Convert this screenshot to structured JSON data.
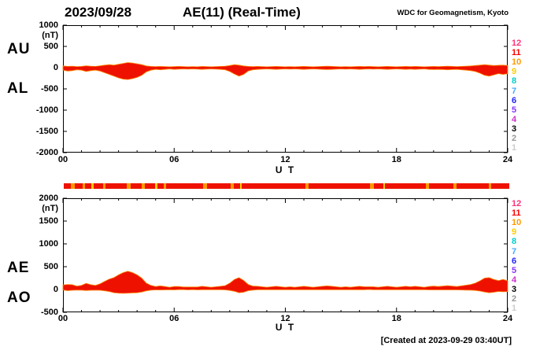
{
  "header": {
    "date": "2023/09/28",
    "title": "AE(11) (Real-Time)",
    "credit": "WDC for Geomagnetism, Kyoto"
  },
  "footer": {
    "created": "[Created at 2023-09-29 03:40UT]"
  },
  "station_legend": {
    "description": "number of stations color scale",
    "items": [
      {
        "label": "12",
        "color": "#ff3377"
      },
      {
        "label": "11",
        "color": "#ff0000"
      },
      {
        "label": "10",
        "color": "#ff9900"
      },
      {
        "label": "9",
        "color": "#ffcc00"
      },
      {
        "label": "8",
        "color": "#00cccc"
      },
      {
        "label": "7",
        "color": "#44aaff"
      },
      {
        "label": "6",
        "color": "#2222ff"
      },
      {
        "label": "5",
        "color": "#8833ff"
      },
      {
        "label": "4",
        "color": "#cc33cc"
      },
      {
        "label": "3",
        "color": "#000000"
      },
      {
        "label": "2",
        "color": "#999999"
      },
      {
        "label": "1",
        "color": "#cccccc"
      }
    ]
  },
  "colorbar": {
    "base_color": "#ee1100",
    "segments": [
      {
        "x": 0.4,
        "w": 0.2,
        "color": "#ff9900"
      },
      {
        "x": 1.0,
        "w": 0.15,
        "color": "#ff9900"
      },
      {
        "x": 1.5,
        "w": 0.1,
        "color": "#ffcc00"
      },
      {
        "x": 2.1,
        "w": 0.15,
        "color": "#ff9900"
      },
      {
        "x": 3.4,
        "w": 0.2,
        "color": "#ff9900"
      },
      {
        "x": 4.2,
        "w": 0.15,
        "color": "#ff9900"
      },
      {
        "x": 4.9,
        "w": 0.15,
        "color": "#ffcc00"
      },
      {
        "x": 5.4,
        "w": 0.1,
        "color": "#ff9900"
      },
      {
        "x": 7.5,
        "w": 0.2,
        "color": "#ff9900"
      },
      {
        "x": 9.0,
        "w": 0.15,
        "color": "#ff9900"
      },
      {
        "x": 9.5,
        "w": 0.1,
        "color": "#ffcc00"
      },
      {
        "x": 13.0,
        "w": 0.2,
        "color": "#ff9900"
      },
      {
        "x": 16.5,
        "w": 0.2,
        "color": "#ff9900"
      },
      {
        "x": 17.2,
        "w": 0.12,
        "color": "#ffcc00"
      },
      {
        "x": 19.5,
        "w": 0.18,
        "color": "#ff9900"
      },
      {
        "x": 21.0,
        "w": 0.15,
        "color": "#ff9900"
      },
      {
        "x": 22.9,
        "w": 0.12,
        "color": "#ff9900"
      }
    ]
  },
  "chart_data": [
    {
      "type": "area",
      "title": "AE(11) (Real-Time)",
      "panel": "upper",
      "xlabel": "U T",
      "ylabel": "(nT)",
      "xlim": [
        0,
        24
      ],
      "ylim": [
        -2000,
        1000
      ],
      "grid": false,
      "legend_position": "right",
      "x_hours": {
        "start": 0,
        "step": 0.25,
        "end": 24
      },
      "xticks": [
        {
          "hour": 0,
          "label": "00"
        },
        {
          "hour": 6,
          "label": "06"
        },
        {
          "hour": 12,
          "label": "12"
        },
        {
          "hour": 18,
          "label": "18"
        },
        {
          "hour": 24,
          "label": "24"
        }
      ],
      "yticks": [
        {
          "v": 1000,
          "label": "1000"
        },
        {
          "v": 500,
          "label": "500"
        },
        {
          "v": 0,
          "label": "0"
        },
        {
          "v": -500,
          "label": "-500"
        },
        {
          "v": -1000,
          "label": "-1000"
        },
        {
          "v": -1500,
          "label": "-1500"
        },
        {
          "v": -2000,
          "label": "-2000"
        }
      ],
      "fill_color": "#ee1100",
      "edge_color": "#ff8800",
      "series": [
        {
          "name": "AU",
          "values": [
            40,
            30,
            35,
            25,
            30,
            45,
            35,
            30,
            45,
            60,
            70,
            60,
            80,
            100,
            120,
            110,
            90,
            70,
            40,
            30,
            25,
            30,
            25,
            20,
            25,
            30,
            25,
            20,
            25,
            20,
            30,
            25,
            20,
            25,
            30,
            35,
            50,
            70,
            60,
            40,
            30,
            25,
            30,
            25,
            20,
            25,
            30,
            25,
            20,
            25,
            20,
            25,
            30,
            25,
            20,
            25,
            30,
            35,
            30,
            25,
            20,
            25,
            20,
            25,
            30,
            25,
            30,
            25,
            20,
            25,
            30,
            25,
            20,
            25,
            30,
            25,
            30,
            25,
            20,
            25,
            30,
            25,
            30,
            35,
            30,
            25,
            30,
            35,
            40,
            50,
            60,
            70,
            60,
            50,
            55,
            60,
            50
          ]
        },
        {
          "name": "AL",
          "values": [
            -60,
            -80,
            -70,
            -50,
            -60,
            -90,
            -70,
            -60,
            -80,
            -120,
            -160,
            -200,
            -240,
            -270,
            -280,
            -260,
            -230,
            -180,
            -100,
            -60,
            -40,
            -50,
            -40,
            -30,
            -40,
            -35,
            -30,
            -35,
            -30,
            -35,
            -40,
            -35,
            -30,
            -35,
            -40,
            -50,
            -90,
            -150,
            -200,
            -160,
            -80,
            -50,
            -40,
            -35,
            -30,
            -35,
            -40,
            -35,
            -30,
            -35,
            -30,
            -35,
            -40,
            -35,
            -30,
            -35,
            -40,
            -45,
            -40,
            -35,
            -30,
            -35,
            -30,
            -35,
            -40,
            -35,
            -30,
            -35,
            -30,
            -35,
            -40,
            -35,
            -30,
            -35,
            -40,
            -35,
            -40,
            -35,
            -30,
            -40,
            -45,
            -40,
            -45,
            -50,
            -45,
            -40,
            -50,
            -60,
            -70,
            -90,
            -130,
            -180,
            -200,
            -170,
            -140,
            -160,
            -140
          ]
        }
      ]
    },
    {
      "type": "area",
      "title": "AE(11) (Real-Time)",
      "panel": "lower",
      "xlabel": "U T",
      "ylabel": "(nT)",
      "xlim": [
        0,
        24
      ],
      "ylim": [
        -500,
        2000
      ],
      "grid": false,
      "legend_position": "right",
      "x_hours": {
        "start": 0,
        "step": 0.25,
        "end": 24
      },
      "xticks": [
        {
          "hour": 0,
          "label": "00"
        },
        {
          "hour": 6,
          "label": "06"
        },
        {
          "hour": 12,
          "label": "12"
        },
        {
          "hour": 18,
          "label": "18"
        },
        {
          "hour": 24,
          "label": "24"
        }
      ],
      "yticks": [
        {
          "v": 2000,
          "label": "2000"
        },
        {
          "v": 1500,
          "label": "1500"
        },
        {
          "v": 1000,
          "label": "1000"
        },
        {
          "v": 500,
          "label": "500"
        },
        {
          "v": 0,
          "label": "0"
        },
        {
          "v": -500,
          "label": "-500"
        }
      ],
      "fill_color": "#ee1100",
      "edge_color": "#ff8800",
      "series": [
        {
          "name": "AE",
          "values": [
            100,
            110,
            105,
            75,
            90,
            135,
            105,
            90,
            125,
            180,
            230,
            260,
            320,
            370,
            400,
            370,
            320,
            250,
            140,
            90,
            65,
            80,
            65,
            50,
            65,
            65,
            55,
            55,
            55,
            55,
            70,
            60,
            50,
            60,
            70,
            85,
            140,
            220,
            260,
            200,
            110,
            75,
            70,
            60,
            50,
            60,
            70,
            60,
            50,
            60,
            50,
            60,
            70,
            60,
            50,
            60,
            70,
            80,
            70,
            60,
            50,
            60,
            50,
            60,
            70,
            60,
            60,
            60,
            50,
            60,
            70,
            60,
            50,
            60,
            70,
            60,
            70,
            60,
            50,
            65,
            75,
            65,
            75,
            85,
            75,
            65,
            80,
            95,
            110,
            140,
            190,
            250,
            260,
            220,
            195,
            220,
            190
          ]
        },
        {
          "name": "AO",
          "values": [
            -10,
            -25,
            -18,
            -13,
            -15,
            -23,
            -18,
            -15,
            -18,
            -30,
            -45,
            -70,
            -80,
            -85,
            -80,
            -75,
            -70,
            -55,
            -30,
            -15,
            -8,
            -10,
            -8,
            -5,
            -8,
            -3,
            -3,
            -8,
            -3,
            -8,
            -5,
            -5,
            -5,
            -5,
            -5,
            -8,
            -20,
            -40,
            -70,
            -60,
            -25,
            -13,
            -5,
            -5,
            -5,
            -5,
            -5,
            -5,
            -5,
            -5,
            -5,
            -5,
            -5,
            -5,
            -5,
            -5,
            -5,
            -5,
            -5,
            -5,
            -5,
            -5,
            -5,
            -5,
            -5,
            -5,
            0,
            -5,
            -5,
            -5,
            -5,
            -5,
            -5,
            -5,
            -5,
            -5,
            -5,
            -5,
            -5,
            -8,
            -8,
            -8,
            -8,
            -8,
            -8,
            -8,
            -10,
            -13,
            -15,
            -20,
            -35,
            -55,
            -70,
            -60,
            -43,
            -50,
            -45
          ]
        }
      ]
    }
  ]
}
